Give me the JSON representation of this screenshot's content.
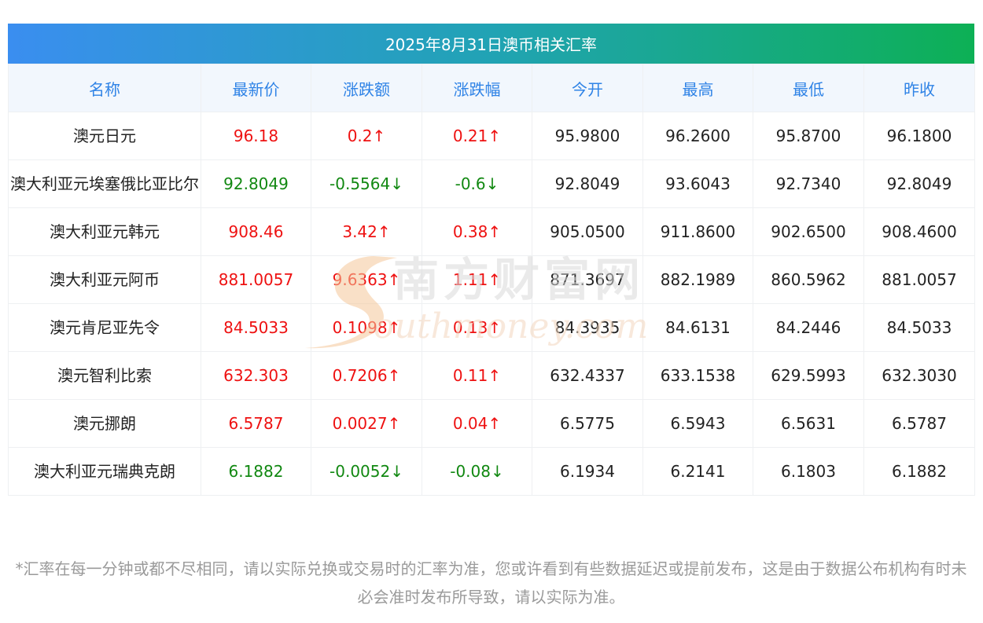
{
  "title": "2025年8月31日澳币相关汇率",
  "headers": [
    "名称",
    "最新价",
    "涨跌额",
    "涨跌幅",
    "今开",
    "最高",
    "最低",
    "昨收"
  ],
  "rows": [
    {
      "name": "澳元日元",
      "latest": "96.18",
      "change": "0.2↑",
      "pct": "0.21↑",
      "open": "95.9800",
      "high": "96.2600",
      "low": "95.8700",
      "prev": "96.1800",
      "trend": "up"
    },
    {
      "name": "澳大利亚元埃塞俄比亚比尔",
      "latest": "92.8049",
      "change": "-0.5564↓",
      "pct": "-0.6↓",
      "open": "92.8049",
      "high": "93.6043",
      "low": "92.7340",
      "prev": "92.8049",
      "trend": "down"
    },
    {
      "name": "澳大利亚元韩元",
      "latest": "908.46",
      "change": "3.42↑",
      "pct": "0.38↑",
      "open": "905.0500",
      "high": "911.8600",
      "low": "902.6500",
      "prev": "908.4600",
      "trend": "up"
    },
    {
      "name": "澳大利亚元阿币",
      "latest": "881.0057",
      "change": "9.6363↑",
      "pct": "1.11↑",
      "open": "871.3697",
      "high": "882.1989",
      "low": "860.5962",
      "prev": "881.0057",
      "trend": "up"
    },
    {
      "name": "澳元肯尼亚先令",
      "latest": "84.5033",
      "change": "0.1098↑",
      "pct": "0.13↑",
      "open": "84.3935",
      "high": "84.6131",
      "low": "84.2446",
      "prev": "84.5033",
      "trend": "up"
    },
    {
      "name": "澳元智利比索",
      "latest": "632.303",
      "change": "0.7206↑",
      "pct": "0.11↑",
      "open": "632.4337",
      "high": "633.1538",
      "low": "629.5993",
      "prev": "632.3030",
      "trend": "up"
    },
    {
      "name": "澳元挪朗",
      "latest": "6.5787",
      "change": "0.0027↑",
      "pct": "0.04↑",
      "open": "6.5775",
      "high": "6.5943",
      "low": "6.5631",
      "prev": "6.5787",
      "trend": "up"
    },
    {
      "name": "澳大利亚元瑞典克朗",
      "latest": "6.1882",
      "change": "-0.0052↓",
      "pct": "-0.08↓",
      "open": "6.1934",
      "high": "6.2141",
      "low": "6.1803",
      "prev": "6.1882",
      "trend": "down"
    }
  ],
  "footnote": "*汇率在每一分钟或都不尽相同，请以实际兑换或交易时的汇率为准，您或许看到有些数据延迟或提前发布，这是由于数据公布机构有时未必会准时发布所导致，请以实际为准。",
  "watermark": {
    "cn": "南方财富网",
    "en": "outhmoney.com"
  },
  "colors": {
    "up": "#ee1111",
    "down": "#118811",
    "header_text": "#2f83e6",
    "title_gradient_start": "#3a8ef0",
    "title_gradient_end": "#0db055"
  }
}
